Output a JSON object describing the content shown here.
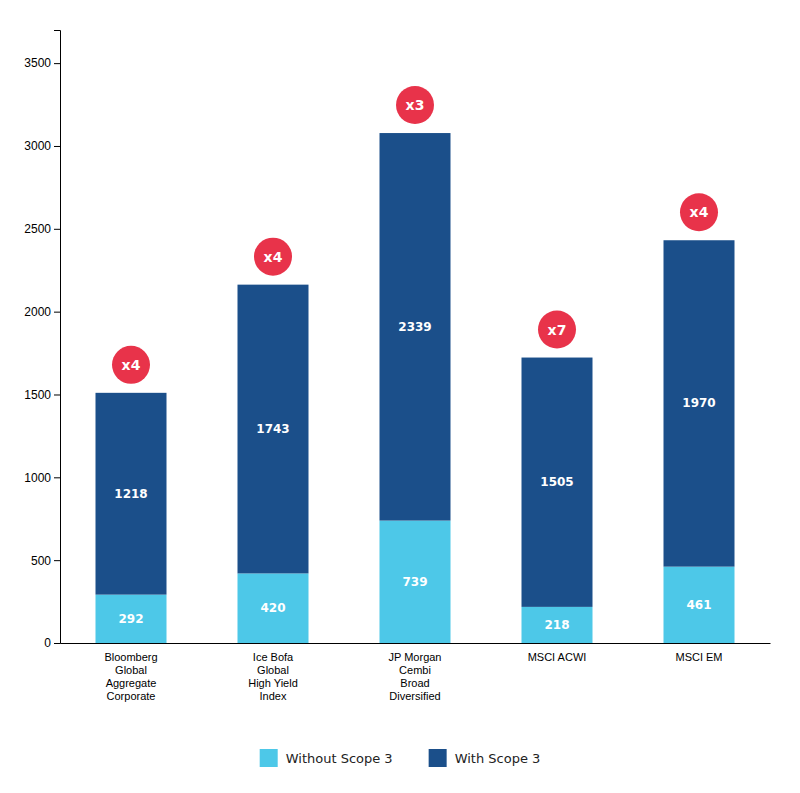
{
  "chart_data": {
    "type": "bar",
    "stacked": true,
    "categories": [
      "Bloomberg\nGlobal\nAggregate\nCorporate",
      "Ice Bofa\nGlobal\nHigh Yield\nIndex",
      "JP Morgan\nCembi\nBroad\nDiversified",
      "MSCI ACWI",
      "MSCI EM"
    ],
    "series": [
      {
        "name": "Without Scope 3",
        "color": "#4DC8E8",
        "values": [
          292,
          420,
          739,
          218,
          461
        ]
      },
      {
        "name": "With Scope 3",
        "color": "#1B4F8A",
        "values": [
          1218,
          1743,
          2339,
          1505,
          1970
        ]
      }
    ],
    "annotations": [
      "x4",
      "x4",
      "x3",
      "x7",
      "x4"
    ],
    "ylim": [
      0,
      3700
    ],
    "yticks": [
      0,
      500,
      1000,
      1500,
      2000,
      2500,
      3000,
      3500
    ],
    "data_labels": true,
    "grid": false,
    "legend": "bottom"
  }
}
